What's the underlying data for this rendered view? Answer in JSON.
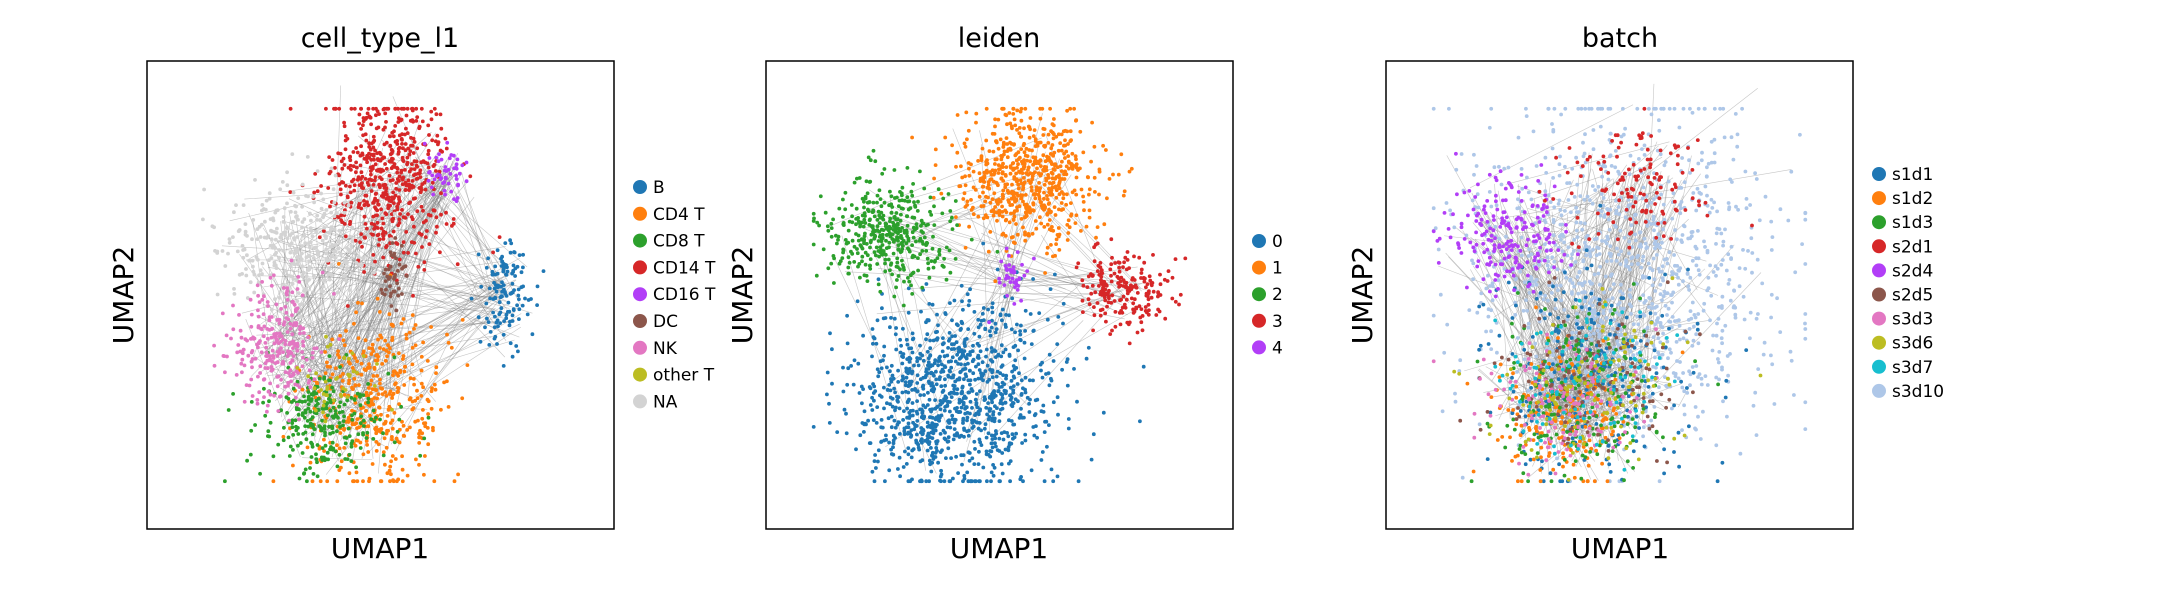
{
  "chart_data": [
    {
      "type": "scatter",
      "title": "cell_type_l1",
      "xlabel": "UMAP1",
      "ylabel": "UMAP2",
      "legend_position": "right",
      "graph_edges_visible": true,
      "categories": [
        {
          "name": "B",
          "color": "#1f77b4",
          "centroid": [
            0.82,
            0.5
          ],
          "spread": [
            0.035,
            0.07
          ],
          "share": 0.05
        },
        {
          "name": "CD4 T",
          "color": "#ff7f0e",
          "centroid": [
            0.49,
            0.22
          ],
          "spread": [
            0.09,
            0.11
          ],
          "share": 0.16
        },
        {
          "name": "CD8 T",
          "color": "#2ca02c",
          "centroid": [
            0.35,
            0.18
          ],
          "spread": [
            0.08,
            0.07
          ],
          "share": 0.1
        },
        {
          "name": "CD14 T",
          "color": "#d62728",
          "centroid": [
            0.52,
            0.8
          ],
          "spread": [
            0.08,
            0.11
          ],
          "share": 0.21
        },
        {
          "name": "CD16 T",
          "color": "#b23ef7",
          "centroid": [
            0.67,
            0.81
          ],
          "spread": [
            0.03,
            0.04
          ],
          "share": 0.02
        },
        {
          "name": "DC",
          "color": "#8c564b",
          "centroid": [
            0.53,
            0.55
          ],
          "spread": [
            0.015,
            0.04
          ],
          "share": 0.01
        },
        {
          "name": "NK",
          "color": "#e377c2",
          "centroid": [
            0.23,
            0.36
          ],
          "spread": [
            0.06,
            0.08
          ],
          "share": 0.1
        },
        {
          "name": "other T",
          "color": "#bcbd22",
          "centroid": [
            0.4,
            0.3
          ],
          "spread": [
            0.05,
            0.05
          ],
          "share": 0.01
        },
        {
          "name": "NA",
          "color": "#d3d3d3",
          "centroid": [
            0.28,
            0.63
          ],
          "spread": [
            0.1,
            0.08
          ],
          "share": 0.12
        }
      ]
    },
    {
      "type": "scatter",
      "title": "leiden",
      "xlabel": "UMAP1",
      "ylabel": "UMAP2",
      "legend_position": "right",
      "graph_edges_visible": true,
      "categories": [
        {
          "name": "0",
          "color": "#1f77b4",
          "centroid": [
            0.38,
            0.24
          ],
          "spread": [
            0.13,
            0.12
          ],
          "share": 0.4
        },
        {
          "name": "1",
          "color": "#ff7f0e",
          "centroid": [
            0.57,
            0.8
          ],
          "spread": [
            0.09,
            0.09
          ],
          "share": 0.25
        },
        {
          "name": "2",
          "color": "#2ca02c",
          "centroid": [
            0.21,
            0.66
          ],
          "spread": [
            0.08,
            0.07
          ],
          "share": 0.16
        },
        {
          "name": "3",
          "color": "#d62728",
          "centroid": [
            0.82,
            0.51
          ],
          "spread": [
            0.06,
            0.05
          ],
          "share": 0.08
        },
        {
          "name": "4",
          "color": "#b23ef7",
          "centroid": [
            0.53,
            0.54
          ],
          "spread": [
            0.02,
            0.03
          ],
          "share": 0.01
        }
      ]
    },
    {
      "type": "scatter",
      "title": "batch",
      "xlabel": "UMAP1",
      "ylabel": "UMAP2",
      "legend_position": "right",
      "graph_edges_visible": true,
      "categories": [
        {
          "name": "s1d1",
          "color": "#1f77b4",
          "centroid": [
            0.4,
            0.3
          ],
          "spread": [
            0.14,
            0.14
          ],
          "share": 0.1
        },
        {
          "name": "s1d2",
          "color": "#ff7f0e",
          "centroid": [
            0.35,
            0.2
          ],
          "spread": [
            0.09,
            0.08
          ],
          "share": 0.08
        },
        {
          "name": "s1d3",
          "color": "#2ca02c",
          "centroid": [
            0.4,
            0.25
          ],
          "spread": [
            0.12,
            0.11
          ],
          "share": 0.07
        },
        {
          "name": "s2d1",
          "color": "#d62728",
          "centroid": [
            0.55,
            0.78
          ],
          "spread": [
            0.09,
            0.08
          ],
          "share": 0.05
        },
        {
          "name": "s2d4",
          "color": "#b23ef7",
          "centroid": [
            0.21,
            0.66
          ],
          "spread": [
            0.08,
            0.07
          ],
          "share": 0.08
        },
        {
          "name": "s2d5",
          "color": "#8c564b",
          "centroid": [
            0.42,
            0.28
          ],
          "spread": [
            0.12,
            0.1
          ],
          "share": 0.05
        },
        {
          "name": "s3d3",
          "color": "#e377c2",
          "centroid": [
            0.35,
            0.22
          ],
          "spread": [
            0.1,
            0.08
          ],
          "share": 0.05
        },
        {
          "name": "s3d6",
          "color": "#bcbd22",
          "centroid": [
            0.42,
            0.26
          ],
          "spread": [
            0.12,
            0.1
          ],
          "share": 0.05
        },
        {
          "name": "s3d7",
          "color": "#17becf",
          "centroid": [
            0.4,
            0.28
          ],
          "spread": [
            0.12,
            0.1
          ],
          "share": 0.04
        },
        {
          "name": "s3d10",
          "color": "#aec7e8",
          "centroid": [
            0.5,
            0.55
          ],
          "spread": [
            0.2,
            0.22
          ],
          "share": 0.43
        }
      ]
    }
  ]
}
